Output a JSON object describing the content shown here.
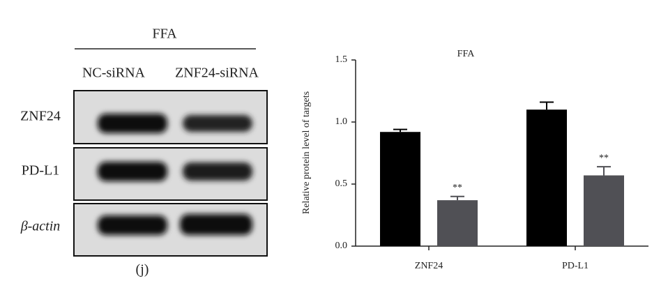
{
  "blot": {
    "title": "FFA",
    "lanes": [
      "NC-siRNA",
      "ZNF24-siRNA"
    ],
    "rows": [
      "ZNF24",
      "PD-L1",
      "β-actin"
    ],
    "panel_label": "(j)"
  },
  "chart_data": {
    "type": "bar",
    "title": "FFA",
    "y_label": "Relative protein level of targets",
    "categories": [
      "ZNF24",
      "PD-L1"
    ],
    "series": [
      {
        "color": "#000000",
        "values": [
          0.92,
          1.1
        ],
        "errors": [
          0.02,
          0.06
        ]
      },
      {
        "color": "#505055",
        "values": [
          0.37,
          0.57
        ],
        "errors": [
          0.03,
          0.07
        ],
        "annotations": [
          "**",
          "**"
        ]
      }
    ],
    "ylim": [
      0,
      1.5
    ],
    "yticks": [
      {
        "value": 0,
        "label": "0.0"
      },
      {
        "value": 0.5,
        "label": "0.5"
      },
      {
        "value": 1,
        "label": "1.0"
      },
      {
        "value": 1.5,
        "label": "1.5"
      }
    ]
  }
}
